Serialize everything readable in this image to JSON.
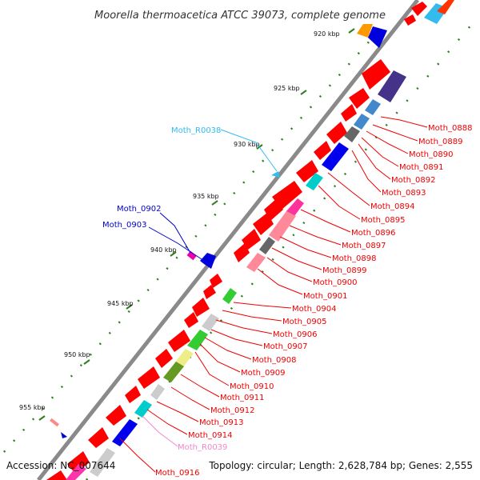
{
  "title": "Moorella thermoacetica ATCC 39073, complete genome",
  "footer": {
    "accession": "Accession: NC_007644",
    "topology": "Topology: circular; Length: 2,628,784 bp; Genes: 2,555"
  },
  "colors": {
    "backbone": "#8a8a8a",
    "tick": "#2e7d20",
    "forward_gene": "#ff0000",
    "rna_label": "#33bbee",
    "blue_label": "#0000cc",
    "red_label": "#ee0000",
    "pink_label": "#ee88cc"
  },
  "kbp_ticks": [
    {
      "label": "920 kbp"
    },
    {
      "label": "925 kbp"
    },
    {
      "label": "930 kbp"
    },
    {
      "label": "935 kbp"
    },
    {
      "label": "940 kbp"
    },
    {
      "label": "945 kbp"
    },
    {
      "label": "950 kbp"
    },
    {
      "label": "955 kbp"
    }
  ],
  "labels": {
    "rna_top": "Moth_R0038",
    "blue_a": "Moth_0902",
    "blue_b": "Moth_0903",
    "rna_bottom": "Moth_R0039",
    "bottom": "Moth_0916"
  },
  "right_labels": [
    "Moth_0888",
    "Moth_0889",
    "Moth_0890",
    "Moth_0891",
    "Moth_0892",
    "Moth_0893",
    "Moth_0894",
    "Moth_0895",
    "Moth_0896",
    "Moth_0897",
    "Moth_0898",
    "Moth_0899",
    "Moth_0900",
    "Moth_0901",
    "Moth_0904",
    "Moth_0905",
    "Moth_0906",
    "Moth_0907",
    "Moth_0908",
    "Moth_0909",
    "Moth_0910",
    "Moth_0911",
    "Moth_0912",
    "Moth_0913",
    "Moth_0914"
  ]
}
